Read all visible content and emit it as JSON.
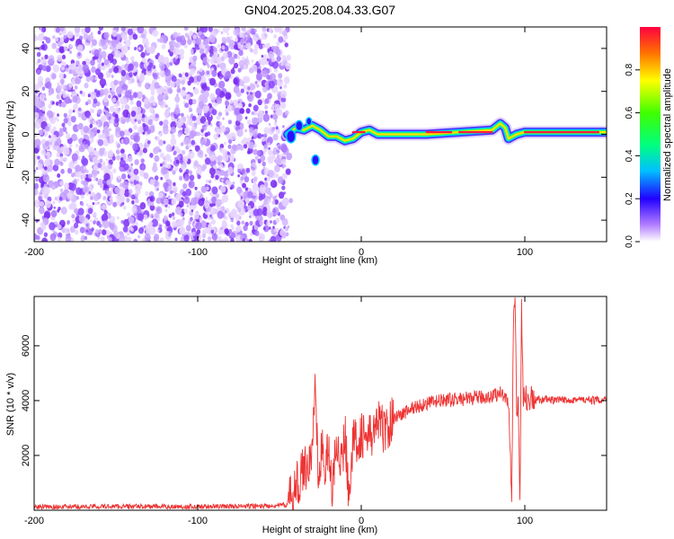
{
  "title": "GN04.2025.208.04.33.G07",
  "chart_data": [
    {
      "type": "heatmap",
      "xlabel": "Height of straight line (km)",
      "ylabel": "Frequency (Hz)",
      "xlim": [
        -200,
        150
      ],
      "ylim": [
        -50,
        50
      ],
      "x_ticks": [
        -200,
        -100,
        0,
        100
      ],
      "y_ticks": [
        -40,
        -20,
        0,
        20,
        40
      ],
      "noise_region_x": [
        -200,
        -45
      ],
      "signal_track": {
        "x": [
          -45,
          -40,
          -35,
          -30,
          -25,
          -20,
          -15,
          -10,
          -5,
          0,
          5,
          10,
          20,
          40,
          60,
          80,
          85,
          88,
          90,
          95,
          100,
          120,
          150
        ],
        "y": [
          0,
          3,
          2,
          4,
          2,
          -1,
          -1,
          -3,
          -2,
          1,
          2,
          0,
          0,
          0,
          1,
          2,
          5,
          3,
          -2,
          0,
          1,
          1,
          1
        ]
      },
      "colorbar": {
        "label": "Normalized spectral amplitude",
        "range": [
          0.0,
          1.0
        ],
        "ticks": [
          0.0,
          0.2,
          0.4,
          0.6,
          0.8
        ]
      }
    },
    {
      "type": "line",
      "xlabel": "Height of straight line (km)",
      "ylabel": "SNR (10 * v/v)",
      "xlim": [
        -200,
        150
      ],
      "ylim": [
        0,
        7800
      ],
      "x_ticks": [
        -200,
        -100,
        0,
        100
      ],
      "y_ticks": [
        2000,
        4000,
        6000
      ],
      "series": [
        {
          "color": "#ee3333",
          "x": [
            -200,
            -150,
            -100,
            -60,
            -45,
            -40,
            -35,
            -30,
            -28,
            -26,
            -24,
            -22,
            -20,
            -18,
            -15,
            -12,
            -10,
            -8,
            -5,
            0,
            5,
            10,
            15,
            20,
            25,
            30,
            40,
            50,
            60,
            70,
            80,
            85,
            90,
            92,
            93,
            94,
            95,
            96,
            97,
            98,
            99,
            100,
            101,
            102,
            103,
            104,
            105,
            110,
            120,
            130,
            140,
            150
          ],
          "y": [
            120,
            140,
            130,
            150,
            200,
            800,
            1500,
            2000,
            4900,
            500,
            2500,
            1200,
            2600,
            500,
            2800,
            1500,
            3000,
            800,
            2400,
            2800,
            2600,
            3200,
            2900,
            3400,
            3500,
            3700,
            3900,
            4000,
            4050,
            4100,
            4150,
            4300,
            4000,
            300,
            6500,
            7800,
            3500,
            4100,
            200,
            7600,
            4200,
            4000,
            4100,
            4050,
            4000,
            4100,
            4000,
            4050,
            4000,
            4050,
            4000,
            4050
          ]
        }
      ]
    }
  ]
}
